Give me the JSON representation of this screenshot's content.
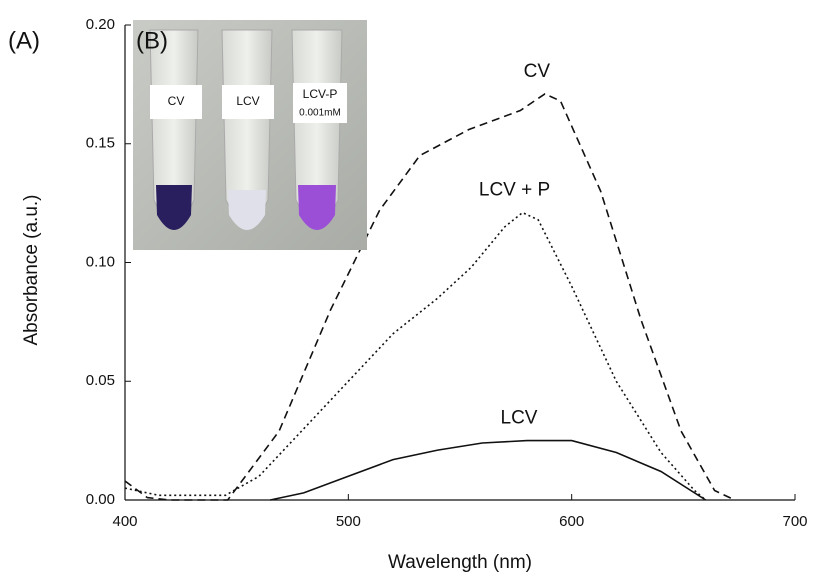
{
  "chart_data": {
    "type": "line",
    "panel_label": "(A)",
    "xlabel": "Wavelength (nm)",
    "ylabel": "Absorbance (a.u.)",
    "xlim": [
      400,
      700
    ],
    "xticks": [
      400,
      500,
      600,
      700
    ],
    "ylim": [
      0,
      0.2
    ],
    "yticks": [
      {
        "value": 0,
        "label": "0.00"
      },
      {
        "value": 0.05,
        "label": "0.05"
      },
      {
        "value": 0.1,
        "label": "0.10"
      },
      {
        "value": 0.15,
        "label": "0.15"
      },
      {
        "value": 0.2,
        "label": "0.20"
      }
    ],
    "series": [
      {
        "name": "CV",
        "color": "#111111",
        "dash": "dashed",
        "x": [
          400,
          410,
          420,
          446,
          469,
          492,
          514,
          532,
          554,
          577,
          588,
          595,
          613,
          631,
          649,
          664,
          673
        ],
        "values": [
          0.008,
          0.001,
          0,
          0,
          0.029,
          0.08,
          0.122,
          0.145,
          0.156,
          0.164,
          0.171,
          0.168,
          0.13,
          0.076,
          0.029,
          0.004,
          0
        ]
      },
      {
        "name": "LCV + P",
        "color": "#111111",
        "dash": "dotted",
        "x": [
          400,
          415,
          445,
          460,
          480,
          500,
          520,
          540,
          555,
          570,
          578,
          585,
          600,
          620,
          640,
          655,
          660
        ],
        "values": [
          0.005,
          0.002,
          0.002,
          0.01,
          0.03,
          0.05,
          0.07,
          0.085,
          0.098,
          0.115,
          0.121,
          0.118,
          0.09,
          0.05,
          0.02,
          0.004,
          0
        ]
      },
      {
        "name": "LCV",
        "color": "#111111",
        "dash": "solid",
        "x": [
          465,
          480,
          500,
          520,
          540,
          560,
          580,
          600,
          620,
          640,
          660
        ],
        "values": [
          0,
          0.003,
          0.01,
          0.017,
          0.021,
          0.024,
          0.025,
          0.025,
          0.02,
          0.012,
          0
        ]
      }
    ]
  },
  "inset": {
    "panel_label": "(B)",
    "tube_labels": [
      "CV",
      "LCV",
      "LCV-P"
    ],
    "note": "0.001mM"
  }
}
